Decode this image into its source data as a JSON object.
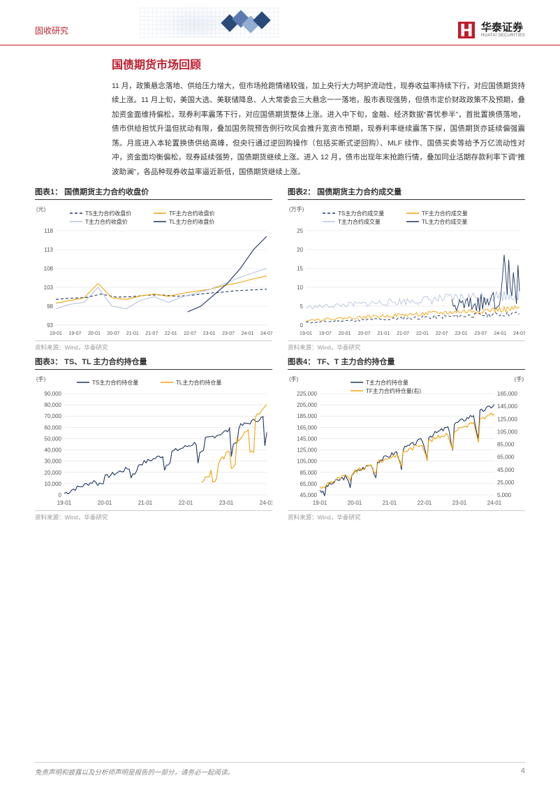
{
  "header": {
    "category": "固收研究"
  },
  "logo": {
    "cn": "华泰证券",
    "en": "HUATAI SECURITIES"
  },
  "section": {
    "title": "国债期货市场回顾"
  },
  "body": {
    "text": "11 月，政策悬念落地、供给压力增大，但市场抢跑情绪较强，加上央行大力呵护流动性，现券收益率持续下行，对应国债期货持续上涨。11 月上旬，美国大选、美联储降息、人大常委会三大悬念一一落地，股市表现强势，但债市定价财政政策不及预期，叠加资金面维持偏松，现券利率震荡下行，对应国债期货整体上涨。进入中下旬，金融、经济数据“喜忧参半”，首批置换债落地，债市供给担忧升温但扰动有限，叠加国务院预告例行吹风会推升宽资市预期，现券利率继续震荡下探，国债期货亦延续偏强震荡。月底进入本轮置换债供给高峰，但央行通过逆回购操作（包括买断式逆回购）、MLF 续作、国债买卖等给予万亿流动性对冲，资金面均衡偏松，现券延续强势，国债期货继续上涨。进入 12 月，债市出现年末抢跑行情，叠加同业活期存款利率下调“推波助澜”，各品种现券收益率逼近新低，国债期货继续上涨。"
  },
  "source_label": "资料来源：Wind，华泰研究",
  "charts": {
    "c1": {
      "title": "图表1： 国债期货主力合约收盘价",
      "type": "line",
      "y_unit": "(元)",
      "xlim": [
        "19-01",
        "24-07"
      ],
      "xticks": [
        "19-01",
        "19-07",
        "20-01",
        "20-07",
        "21-01",
        "21-07",
        "22-01",
        "22-07",
        "23-01",
        "23-07",
        "24-01",
        "24-07"
      ],
      "ylim": [
        93,
        118
      ],
      "ytick_step": 5,
      "background_color": "#ffffff",
      "grid_color": "#d9d9d9",
      "axis_fontsize": 8,
      "legend_fontsize": 8,
      "line_width": 1.1,
      "series": [
        {
          "name": "TS主力合约收盘价",
          "color": "#1f355e",
          "dash": "4,3",
          "values": [
            99.8,
            100.1,
            100.3,
            101.2,
            100.4,
            100.5,
            100.9,
            101.0,
            100.6,
            100.9,
            101.4,
            101.7,
            102.1,
            102.3,
            102.5
          ]
        },
        {
          "name": "TF主力合约收盘价",
          "color": "#f0a30a",
          "dash": "none",
          "values": [
            98.8,
            99.5,
            100.2,
            104.0,
            100.2,
            99.8,
            100.7,
            101.2,
            100.6,
            101.4,
            102.0,
            102.5,
            103.5,
            104.2,
            105.2,
            106.0
          ]
        },
        {
          "name": "T主力合约收盘价",
          "color": "#b7c5df",
          "dash": "none",
          "values": [
            97.3,
            98.5,
            99.0,
            103.0,
            98.0,
            97.3,
            99.5,
            100.5,
            99.0,
            100.5,
            101.5,
            102.5,
            104.0,
            105.5,
            106.8,
            108.0
          ]
        },
        {
          "name": "TL主力合约收盘价",
          "color": "#1f355e",
          "dash": "none",
          "values": [
            null,
            null,
            null,
            null,
            null,
            null,
            null,
            null,
            null,
            null,
            96.5,
            98.0,
            101.0,
            104.0,
            108.0,
            113.0,
            116.5
          ]
        }
      ]
    },
    "c2": {
      "title": "图表2： 国债期货主力合约成交量",
      "type": "line",
      "y_unit": "(万手)",
      "xticks": [
        "19-01",
        "19-07",
        "20-01",
        "20-07",
        "21-01",
        "21-07",
        "22-01",
        "22-07",
        "23-01",
        "23-07",
        "24-01",
        "24-07"
      ],
      "ylim": [
        0,
        25
      ],
      "ytick_step": 5,
      "background_color": "#ffffff",
      "grid_color": "#d9d9d9",
      "axis_fontsize": 8,
      "legend_fontsize": 8,
      "line_width": 0.9,
      "series": [
        {
          "name": "TS主力合约成交量",
          "color": "#1f355e",
          "dash": "4,3"
        },
        {
          "name": "TF主力合约成交量",
          "color": "#f0a30a",
          "dash": "none"
        },
        {
          "name": "T主力合约成交量",
          "color": "#b7c5df",
          "dash": "none"
        },
        {
          "name": "TL主力合约成交量",
          "color": "#1f355e",
          "dash": "none"
        }
      ]
    },
    "c3": {
      "title": "图表3： TS、TL 主力合约持仓量",
      "type": "line",
      "y_unit": "(手)",
      "xticks": [
        "19-01",
        "20-01",
        "21-01",
        "22-01",
        "23-01",
        "24-01"
      ],
      "ylim": [
        0,
        90000
      ],
      "ytick_step": 10000,
      "background_color": "#ffffff",
      "grid_color": "#d9d9d9",
      "axis_fontsize": 8,
      "legend_fontsize": 8,
      "line_width": 1.1,
      "series": [
        {
          "name": "TS主力合约持仓量",
          "color": "#1f355e",
          "dash": "none"
        },
        {
          "name": "TL主力合约持仓量",
          "color": "#f0a30a",
          "dash": "none"
        }
      ]
    },
    "c4": {
      "title": "图表4： TF、T 主力合约持仓量",
      "type": "line_dual_axis",
      "y_unit": "(手)",
      "y2_unit": "(手)",
      "xticks": [
        "19-01",
        "20-01",
        "21-01",
        "22-01",
        "23-01",
        "24-01"
      ],
      "ylim": [
        45000,
        225000
      ],
      "ytick_step": 20000,
      "y2lim": [
        5000,
        165000
      ],
      "y2tick_step": 20000,
      "background_color": "#ffffff",
      "grid_color": "#d9d9d9",
      "axis_fontsize": 8,
      "legend_fontsize": 8,
      "line_width": 1.1,
      "series": [
        {
          "name": "T主力合约持仓量",
          "color": "#1f355e",
          "dash": "none",
          "axis": "left"
        },
        {
          "name": "TF主力合约持仓量(右)",
          "color": "#f0a30a",
          "dash": "none",
          "axis": "right"
        }
      ]
    }
  },
  "footer": {
    "disclaimer": "免责声明和披露以及分析师声明是报告的一部分，请务必一起阅读。",
    "page": "4"
  }
}
